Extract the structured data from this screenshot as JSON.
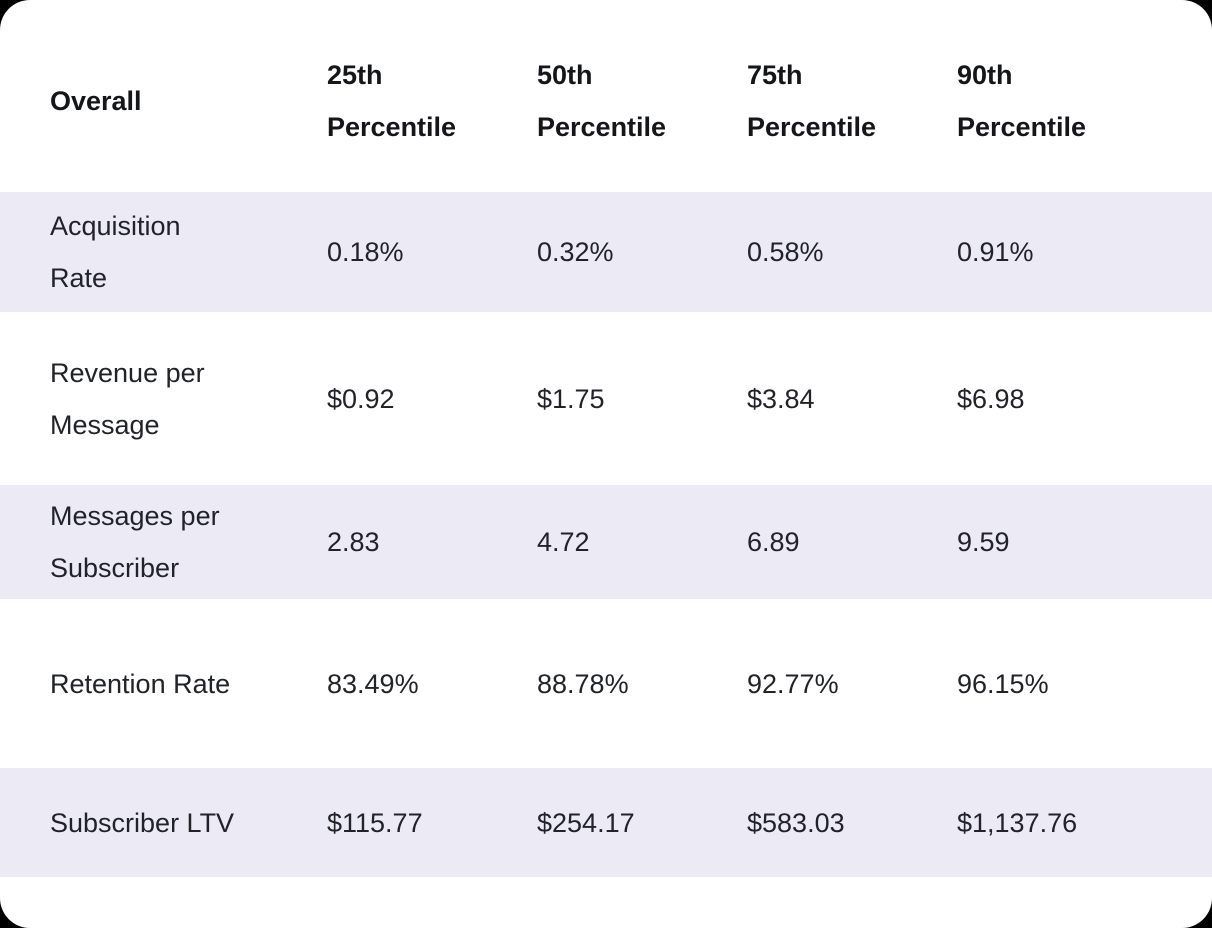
{
  "colors": {
    "page-bg": "#000000",
    "card-bg": "#ffffff",
    "stripe": "#ECEBF5",
    "header-text": "#15161A",
    "body-text": "#212329"
  },
  "table": {
    "headers": [
      "Overall",
      "25th Percentile",
      "50th Percentile",
      "75th Percentile",
      "90th Percentile"
    ],
    "rows": [
      {
        "label": "Acquisition Rate",
        "values": [
          "0.18%",
          "0.32%",
          "0.58%",
          "0.91%"
        ]
      },
      {
        "label": "Revenue per Message",
        "values": [
          "$0.92",
          "$1.75",
          "$3.84",
          "$6.98"
        ]
      },
      {
        "label": "Messages per Subscriber",
        "values": [
          "2.83",
          "4.72",
          "6.89",
          "9.59"
        ]
      },
      {
        "label": "Retention Rate",
        "values": [
          "83.49%",
          "88.78%",
          "92.77%",
          "96.15%"
        ]
      },
      {
        "label": "Subscriber LTV",
        "values": [
          "$115.77",
          "$254.17",
          "$583.03",
          "$1,137.76"
        ]
      }
    ]
  },
  "chart_data": {
    "type": "table",
    "title": "Overall",
    "columns": [
      "Overall",
      "25th Percentile",
      "50th Percentile",
      "75th Percentile",
      "90th Percentile"
    ],
    "rows": [
      [
        "Acquisition Rate",
        "0.18%",
        "0.32%",
        "0.58%",
        "0.91%"
      ],
      [
        "Revenue per Message",
        "$0.92",
        "$1.75",
        "$3.84",
        "$6.98"
      ],
      [
        "Messages per Subscriber",
        "2.83",
        "4.72",
        "6.89",
        "9.59"
      ],
      [
        "Retention Rate",
        "83.49%",
        "88.78%",
        "92.77%",
        "96.15%"
      ],
      [
        "Subscriber LTV",
        "$115.77",
        "$254.17",
        "$583.03",
        "$1,137.76"
      ]
    ],
    "layout": {
      "striped_rows": [
        1,
        3,
        5
      ],
      "stripe_color": "#ECEBF5",
      "grid": false
    }
  }
}
